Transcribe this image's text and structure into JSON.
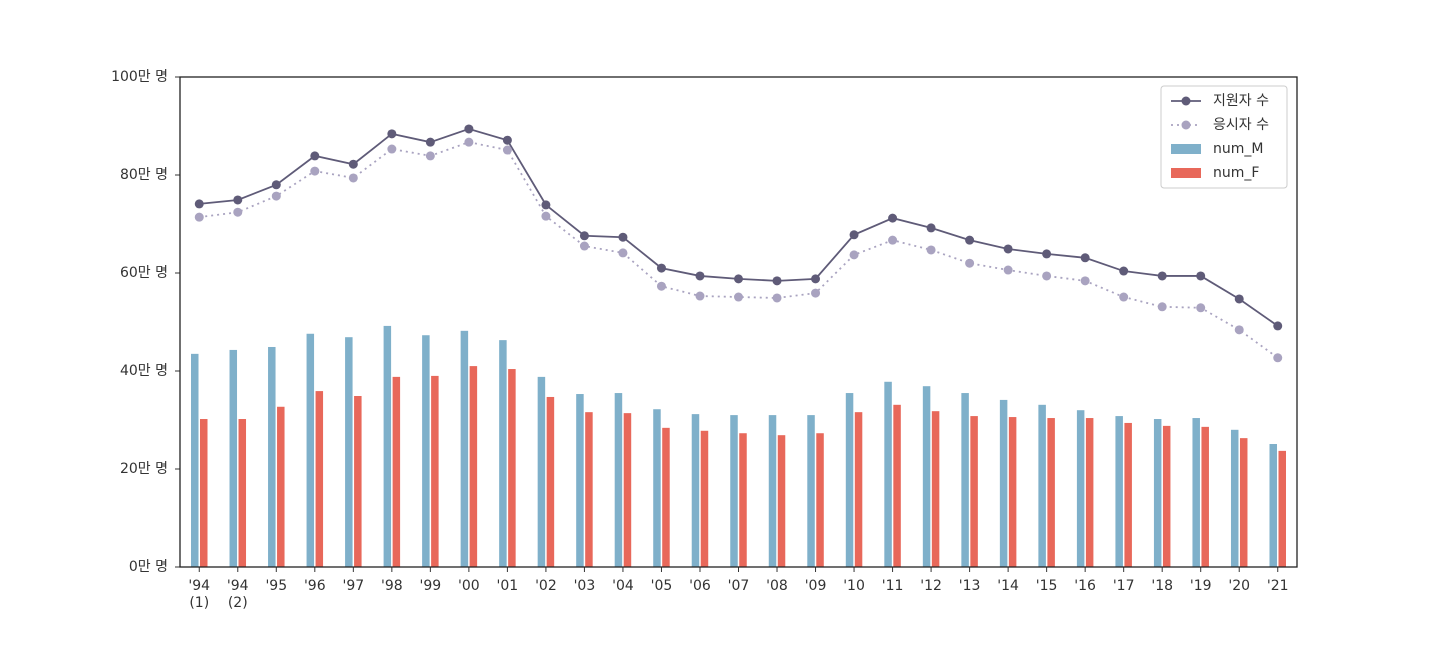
{
  "chart_data": {
    "type": "bar",
    "categories": [
      "'94\n(1)",
      "'94\n(2)",
      "'95",
      "'96",
      "'97",
      "'98",
      "'99",
      "'00",
      "'01",
      "'02",
      "'03",
      "'04",
      "'05",
      "'06",
      "'07",
      "'08",
      "'09",
      "'10",
      "'11",
      "'12",
      "'13",
      "'14",
      "'15",
      "'16",
      "'17",
      "'18",
      "'19",
      "'20",
      "'21"
    ],
    "series": [
      {
        "name": "지원자 수",
        "type": "line",
        "linestyle": "solid",
        "color": "#5f5b78",
        "values": [
          74.1,
          74.9,
          78.0,
          83.9,
          82.2,
          88.4,
          86.7,
          89.4,
          87.1,
          73.9,
          67.6,
          67.3,
          61.0,
          59.4,
          58.8,
          58.4,
          58.8,
          67.8,
          71.2,
          69.2,
          66.7,
          64.9,
          63.9,
          63.1,
          60.4,
          59.4,
          59.4,
          54.7,
          49.2
        ]
      },
      {
        "name": "응시자 수",
        "type": "line",
        "linestyle": "dotted",
        "color": "#a9a3c0",
        "values": [
          71.4,
          72.4,
          75.7,
          80.8,
          79.4,
          85.3,
          83.9,
          86.7,
          85.1,
          71.6,
          65.5,
          64.1,
          57.3,
          55.3,
          55.1,
          54.9,
          55.9,
          63.7,
          66.7,
          64.7,
          62.0,
          60.6,
          59.4,
          58.4,
          55.1,
          53.1,
          52.9,
          48.4,
          42.7
        ]
      },
      {
        "name": "num_M",
        "type": "bar",
        "color": "#7fb0ca",
        "values": [
          43.5,
          44.3,
          44.9,
          47.6,
          46.9,
          49.2,
          47.3,
          48.2,
          46.3,
          38.8,
          35.3,
          35.5,
          32.2,
          31.2,
          31.0,
          31.0,
          31.0,
          35.5,
          37.8,
          36.9,
          35.5,
          34.1,
          33.1,
          32.0,
          30.8,
          30.2,
          30.4,
          28.0,
          25.1
        ]
      },
      {
        "name": "num_F",
        "type": "bar",
        "color": "#e8685a",
        "values": [
          30.2,
          30.2,
          32.7,
          35.9,
          34.9,
          38.8,
          39.0,
          41.0,
          40.4,
          34.7,
          31.6,
          31.4,
          28.4,
          27.8,
          27.3,
          26.9,
          27.3,
          31.6,
          33.1,
          31.8,
          30.8,
          30.6,
          30.4,
          30.4,
          29.4,
          28.8,
          28.6,
          26.3,
          23.7
        ]
      }
    ],
    "ylim": [
      0,
      100
    ],
    "yticks": [
      {
        "value": 0,
        "label": "0만 명"
      },
      {
        "value": 20,
        "label": "20만 명"
      },
      {
        "value": 40,
        "label": "40만 명"
      },
      {
        "value": 60,
        "label": "60만 명"
      },
      {
        "value": 80,
        "label": "80만 명"
      },
      {
        "value": 100,
        "label": "100만 명"
      }
    ],
    "grid": false,
    "legend": "upper right"
  }
}
